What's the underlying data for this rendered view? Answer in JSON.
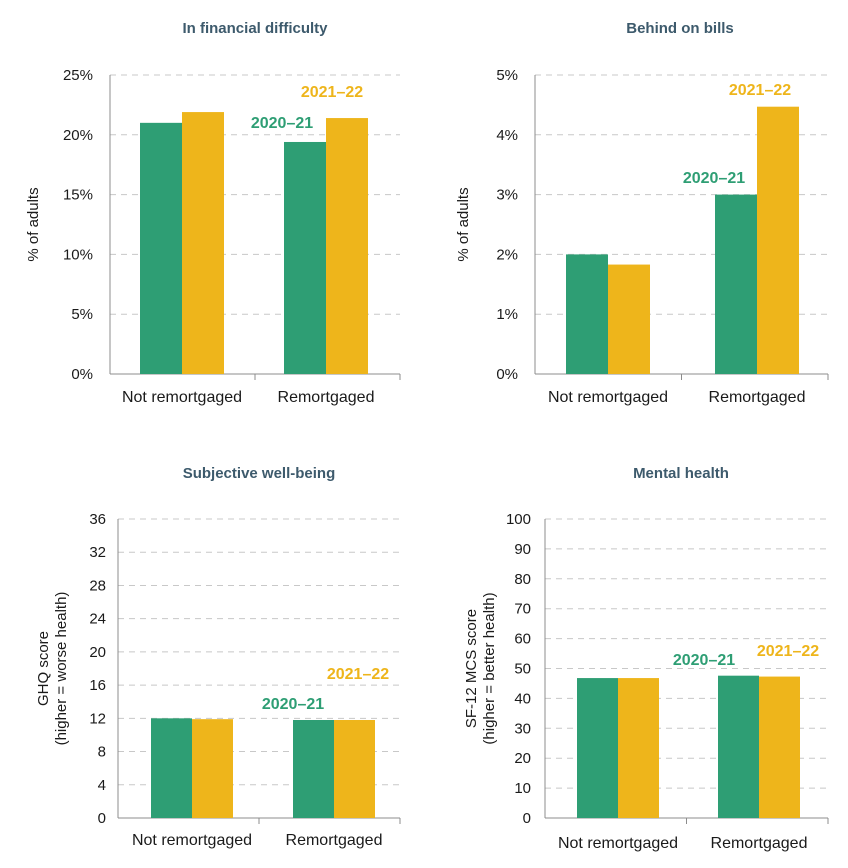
{
  "colors": {
    "series_2020": "#2e9e74",
    "series_2021": "#eeb51b",
    "title": "#3d5a6c"
  },
  "chart_data": [
    {
      "type": "bar",
      "title": "In financial difficulty",
      "ylabel": "% of adults",
      "ylabel2": "",
      "ylim": [
        0,
        25
      ],
      "yticks": [
        0,
        5,
        10,
        15,
        20,
        25
      ],
      "ytick_labels": [
        "0%",
        "5%",
        "10%",
        "15%",
        "20%",
        "25%"
      ],
      "categories": [
        "Not remortgaged",
        "Remortgaged"
      ],
      "series": [
        {
          "name": "2020–21",
          "values": [
            21.0,
            19.4
          ]
        },
        {
          "name": "2021–22",
          "values": [
            21.9,
            21.4
          ]
        }
      ]
    },
    {
      "type": "bar",
      "title": "Behind on bills",
      "ylabel": "% of adults",
      "ylabel2": "",
      "ylim": [
        0,
        5
      ],
      "yticks": [
        0,
        1,
        2,
        3,
        4,
        5
      ],
      "ytick_labels": [
        "0%",
        "1%",
        "2%",
        "3%",
        "4%",
        "5%"
      ],
      "categories": [
        "Not remortgaged",
        "Remortgaged"
      ],
      "series": [
        {
          "name": "2020–21",
          "values": [
            2.0,
            3.0
          ]
        },
        {
          "name": "2021–22",
          "values": [
            1.83,
            4.47
          ]
        }
      ]
    },
    {
      "type": "bar",
      "title": "Subjective well-being",
      "ylabel": "GHQ score",
      "ylabel2": "(higher = worse health)",
      "ylim": [
        0,
        36
      ],
      "yticks": [
        0,
        4,
        8,
        12,
        16,
        20,
        24,
        28,
        32,
        36
      ],
      "ytick_labels": [
        "0",
        "4",
        "8",
        "12",
        "16",
        "20",
        "24",
        "28",
        "32",
        "36"
      ],
      "categories": [
        "Not remortgaged",
        "Remortgaged"
      ],
      "series": [
        {
          "name": "2020–21",
          "values": [
            12.0,
            11.8
          ]
        },
        {
          "name": "2021–22",
          "values": [
            11.9,
            11.8
          ]
        }
      ]
    },
    {
      "type": "bar",
      "title": "Mental health",
      "ylabel": "SF-12 MCS score",
      "ylabel2": "(higher = better health)",
      "ylim": [
        0,
        100
      ],
      "yticks": [
        0,
        10,
        20,
        30,
        40,
        50,
        60,
        70,
        80,
        90,
        100
      ],
      "ytick_labels": [
        "0",
        "10",
        "20",
        "30",
        "40",
        "50",
        "60",
        "70",
        "80",
        "90",
        "100"
      ],
      "categories": [
        "Not remortgaged",
        "Remortgaged"
      ],
      "series": [
        {
          "name": "2020–21",
          "values": [
            46.8,
            47.6
          ]
        },
        {
          "name": "2021–22",
          "values": [
            46.8,
            47.3
          ]
        }
      ]
    }
  ]
}
